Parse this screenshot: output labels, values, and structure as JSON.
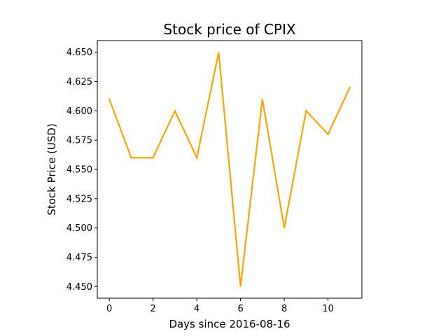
{
  "chart_data": {
    "type": "line",
    "title": "Stock price of CPIX",
    "xlabel": "Days since 2016-08-16",
    "ylabel": "Stock Price (USD)",
    "x": [
      0,
      1,
      2,
      3,
      4,
      5,
      6,
      7,
      8,
      9,
      10,
      11
    ],
    "series": [
      {
        "values": [
          4.61,
          4.56,
          4.56,
          4.6,
          4.56,
          4.65,
          4.45,
          4.61,
          4.5,
          4.6,
          4.58,
          4.62
        ],
        "color": "#ffa500"
      }
    ],
    "xlim": [
      -0.55,
      11.55
    ],
    "ylim": [
      4.44,
      4.66
    ],
    "xticks": [
      0,
      2,
      4,
      6,
      8,
      10
    ],
    "xtick_labels": [
      "0",
      "2",
      "4",
      "6",
      "8",
      "10"
    ],
    "yticks": [
      4.45,
      4.475,
      4.5,
      4.525,
      4.55,
      4.575,
      4.6,
      4.625,
      4.65
    ],
    "ytick_labels": [
      "4.450",
      "4.475",
      "4.500",
      "4.525",
      "4.550",
      "4.575",
      "4.600",
      "4.625",
      "4.650"
    ],
    "grid": false,
    "legend": "none"
  }
}
